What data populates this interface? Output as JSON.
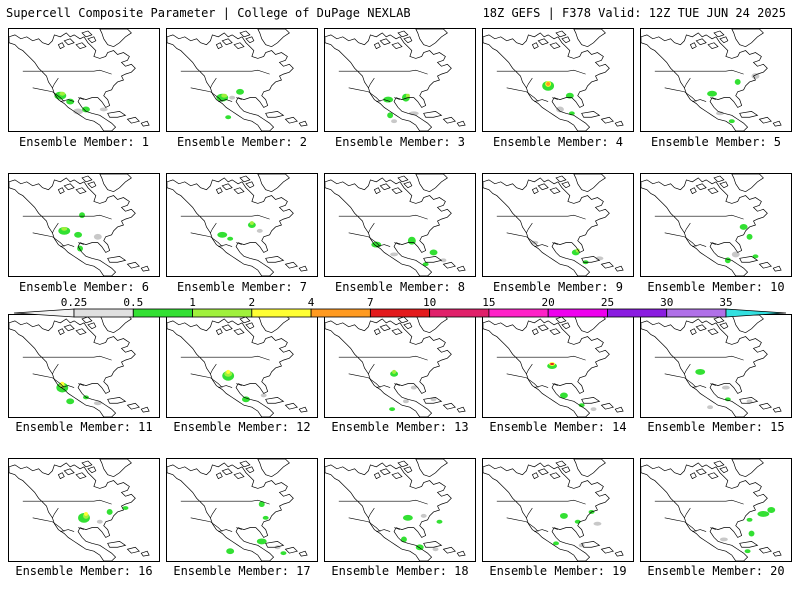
{
  "header": {
    "left": "Supercell Composite Parameter | College of DuPage NEXLAB",
    "right": "18Z GEFS | F378 Valid: 12Z TUE JUN 24 2025"
  },
  "members": [
    {
      "label": "Ensemble Member: 1"
    },
    {
      "label": "Ensemble Member: 2"
    },
    {
      "label": "Ensemble Member: 3"
    },
    {
      "label": "Ensemble Member: 4"
    },
    {
      "label": "Ensemble Member: 5"
    },
    {
      "label": "Ensemble Member: 6"
    },
    {
      "label": "Ensemble Member: 7"
    },
    {
      "label": "Ensemble Member: 8"
    },
    {
      "label": "Ensemble Member: 9"
    },
    {
      "label": "Ensemble Member: 10"
    },
    {
      "label": "Ensemble Member: 11"
    },
    {
      "label": "Ensemble Member: 12"
    },
    {
      "label": "Ensemble Member: 13"
    },
    {
      "label": "Ensemble Member: 14"
    },
    {
      "label": "Ensemble Member: 15"
    },
    {
      "label": "Ensemble Member: 16"
    },
    {
      "label": "Ensemble Member: 17"
    },
    {
      "label": "Ensemble Member: 18"
    },
    {
      "label": "Ensemble Member: 19"
    },
    {
      "label": "Ensemble Member: 20"
    }
  ],
  "colorbar": {
    "levels": [
      {
        "label": "0.25",
        "color": "#e0e0e0"
      },
      {
        "label": "0.5",
        "color": "#33e033"
      },
      {
        "label": "1",
        "color": "#a0f03c"
      },
      {
        "label": "2",
        "color": "#ffff33"
      },
      {
        "label": "4",
        "color": "#ff9a20"
      },
      {
        "label": "7",
        "color": "#e31a1c"
      },
      {
        "label": "10",
        "color": "#e0206a"
      },
      {
        "label": "15",
        "color": "#ff22c8"
      },
      {
        "label": "20",
        "color": "#ee00ee"
      },
      {
        "label": "25",
        "color": "#8a1ce0"
      },
      {
        "label": "30",
        "color": "#b070e8"
      },
      {
        "label": "35",
        "color": "#33e0e0"
      }
    ],
    "low_color": "#f4f4f4"
  },
  "colors": {
    "land_outline": "#000000",
    "border_line": "#000000",
    "water": "#ffffff"
  }
}
